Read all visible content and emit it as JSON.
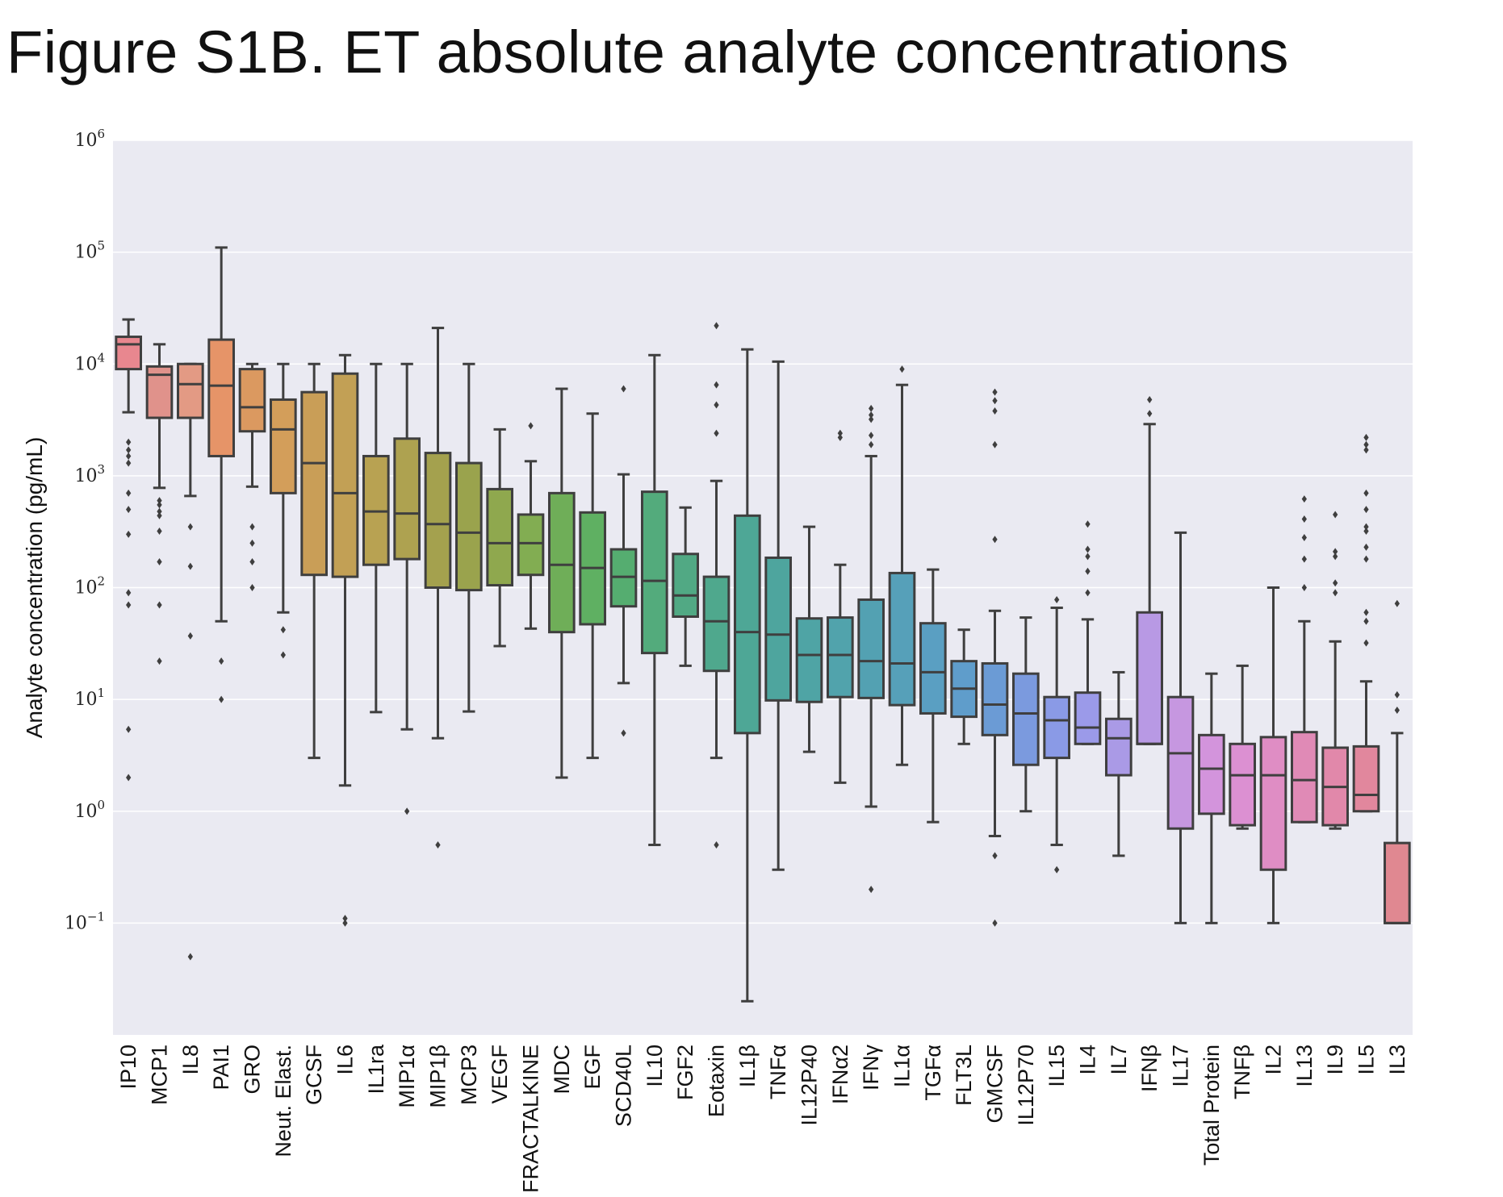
{
  "title": "Figure S1B. ET absolute analyte concentrations",
  "chart_data": {
    "type": "box",
    "title": "Figure S1B. ET absolute analyte concentrations",
    "ylabel": "Analyte concentration (pg/mL)",
    "xlabel": "",
    "yscale": "log",
    "ylim": [
      0.01,
      1000000
    ],
    "yticks": [
      {
        "value": 1000000,
        "base": "10",
        "exp": "6"
      },
      {
        "value": 100000,
        "base": "10",
        "exp": "5"
      },
      {
        "value": 10000,
        "base": "10",
        "exp": "4"
      },
      {
        "value": 1000,
        "base": "10",
        "exp": "3"
      },
      {
        "value": 100,
        "base": "10",
        "exp": "2"
      },
      {
        "value": 10,
        "base": "10",
        "exp": "1"
      },
      {
        "value": 1,
        "base": "10",
        "exp": "0"
      },
      {
        "value": 0.1,
        "base": "10",
        "exp": "−1"
      }
    ],
    "grid": true,
    "background": "#eaeaf2",
    "box_edge_color": "#3f3f3f",
    "categories": [
      {
        "label": "IP10",
        "color": "#e8878f",
        "whislo": 3700,
        "q1": 9000,
        "med": 15000,
        "q3": 17500,
        "whishi": 25000,
        "fliers": [
          2000,
          1700,
          1500,
          1300,
          700,
          500,
          300,
          90,
          70,
          5.4,
          2
        ]
      },
      {
        "label": "MCP1",
        "color": "#e0928b",
        "whislo": 780,
        "q1": 3300,
        "med": 8000,
        "q3": 9500,
        "whishi": 15000,
        "fliers": [
          600,
          550,
          480,
          440,
          320,
          170,
          70,
          22
        ]
      },
      {
        "label": "IL8",
        "color": "#e39a84",
        "whislo": 660,
        "q1": 3300,
        "med": 6600,
        "q3": 10000,
        "whishi": 10000,
        "fliers": [
          350,
          155,
          37,
          0.05
        ]
      },
      {
        "label": "PAI1",
        "color": "#e69468",
        "whislo": 50,
        "q1": 1500,
        "med": 6400,
        "q3": 16500,
        "whishi": 110000,
        "fliers": [
          22,
          10
        ]
      },
      {
        "label": "GRO",
        "color": "#db9960",
        "whislo": 800,
        "q1": 2500,
        "med": 4100,
        "q3": 9000,
        "whishi": 10000,
        "fliers": [
          350,
          250,
          170,
          100
        ]
      },
      {
        "label": "Neut. Elast.",
        "color": "#d39e5a",
        "whislo": 60,
        "q1": 700,
        "med": 2600,
        "q3": 4800,
        "whishi": 10000,
        "fliers": [
          42,
          25
        ]
      },
      {
        "label": "GCSF",
        "color": "#c99e57",
        "whislo": 3,
        "q1": 130,
        "med": 1300,
        "q3": 5600,
        "whishi": 10000,
        "fliers": []
      },
      {
        "label": "IL6",
        "color": "#c2a055",
        "whislo": 1.7,
        "q1": 125,
        "med": 700,
        "q3": 8200,
        "whishi": 12000,
        "fliers": [
          0.11,
          0.1
        ]
      },
      {
        "label": "IL1ra",
        "color": "#b8a252",
        "whislo": 7.7,
        "q1": 160,
        "med": 480,
        "q3": 1500,
        "whishi": 10000,
        "fliers": []
      },
      {
        "label": "MIP1α",
        "color": "#aea250",
        "whislo": 5.4,
        "q1": 180,
        "med": 460,
        "q3": 2150,
        "whishi": 10000,
        "fliers": [
          1
        ]
      },
      {
        "label": "MIP1β",
        "color": "#a4a14e",
        "whislo": 4.5,
        "q1": 100,
        "med": 370,
        "q3": 1600,
        "whishi": 21000,
        "fliers": [
          0.5
        ]
      },
      {
        "label": "MCP3",
        "color": "#9aa34d",
        "whislo": 7.8,
        "q1": 95,
        "med": 310,
        "q3": 1300,
        "whishi": 10000,
        "fliers": []
      },
      {
        "label": "VEGF",
        "color": "#8fa84e",
        "whislo": 30,
        "q1": 105,
        "med": 250,
        "q3": 760,
        "whishi": 2600,
        "fliers": []
      },
      {
        "label": "FRACTALKINE",
        "color": "#82ad52",
        "whislo": 43,
        "q1": 130,
        "med": 250,
        "q3": 450,
        "whishi": 1350,
        "fliers": [
          2800
        ]
      },
      {
        "label": "MDC",
        "color": "#6fae58",
        "whislo": 2,
        "q1": 40,
        "med": 160,
        "q3": 700,
        "whishi": 6000,
        "fliers": []
      },
      {
        "label": "EGF",
        "color": "#5fb062",
        "whislo": 3,
        "q1": 47,
        "med": 150,
        "q3": 470,
        "whishi": 3600,
        "fliers": []
      },
      {
        "label": "SCD40L",
        "color": "#55ad70",
        "whislo": 14,
        "q1": 68,
        "med": 125,
        "q3": 220,
        "whishi": 1030,
        "fliers": [
          6000,
          5
        ]
      },
      {
        "label": "IL10",
        "color": "#53ab7c",
        "whislo": 0.5,
        "q1": 26,
        "med": 115,
        "q3": 720,
        "whishi": 12000,
        "fliers": []
      },
      {
        "label": "FGF2",
        "color": "#51a984",
        "whislo": 20,
        "q1": 55,
        "med": 85,
        "q3": 200,
        "whishi": 520,
        "fliers": []
      },
      {
        "label": "Eotaxin",
        "color": "#4fa88d",
        "whislo": 3,
        "q1": 18,
        "med": 50,
        "q3": 125,
        "whishi": 900,
        "fliers": [
          22000,
          6500,
          4300,
          2400,
          0.5
        ]
      },
      {
        "label": "IL1β",
        "color": "#4ea796",
        "whislo": 0.02,
        "q1": 5,
        "med": 40,
        "q3": 440,
        "whishi": 13500,
        "fliers": []
      },
      {
        "label": "TNFα",
        "color": "#4ea59e",
        "whislo": 0.3,
        "q1": 9.8,
        "med": 38,
        "q3": 185,
        "whishi": 10500,
        "fliers": []
      },
      {
        "label": "IL12P40",
        "color": "#4fa4a5",
        "whislo": 3.4,
        "q1": 9.5,
        "med": 25,
        "q3": 53,
        "whishi": 350,
        "fliers": []
      },
      {
        "label": "IFNα2",
        "color": "#51a3ac",
        "whislo": 1.8,
        "q1": 10.5,
        "med": 25,
        "q3": 54,
        "whishi": 160,
        "fliers": [
          2400,
          2200
        ]
      },
      {
        "label": "IFNγ",
        "color": "#53a1b2",
        "whislo": 1.1,
        "q1": 10.3,
        "med": 22,
        "q3": 78,
        "whishi": 1500,
        "fliers": [
          4000,
          3500,
          3200,
          2300,
          1900,
          0.2
        ]
      },
      {
        "label": "IL1α",
        "color": "#56a0b9",
        "whislo": 2.6,
        "q1": 8.9,
        "med": 21,
        "q3": 135,
        "whishi": 6500,
        "fliers": [
          9000
        ]
      },
      {
        "label": "TGFα",
        "color": "#5a9fc2",
        "whislo": 0.8,
        "q1": 7.5,
        "med": 17.5,
        "q3": 48,
        "whishi": 145,
        "fliers": []
      },
      {
        "label": "FLT3L",
        "color": "#5f9dcb",
        "whislo": 4,
        "q1": 7,
        "med": 12.5,
        "q3": 22,
        "whishi": 42,
        "fliers": []
      },
      {
        "label": "GMCSF",
        "color": "#6b9bd5",
        "whislo": 0.6,
        "q1": 4.8,
        "med": 9,
        "q3": 21,
        "whishi": 62,
        "fliers": [
          5600,
          4700,
          3800,
          1900,
          270,
          0.4,
          0.1
        ]
      },
      {
        "label": "IL12P70",
        "color": "#7b9ade",
        "whislo": 1,
        "q1": 2.6,
        "med": 7.5,
        "q3": 17,
        "whishi": 54,
        "fliers": []
      },
      {
        "label": "IL15",
        "color": "#8a9ae6",
        "whislo": 0.5,
        "q1": 3,
        "med": 6.5,
        "q3": 10.5,
        "whishi": 66,
        "fliers": [
          78,
          0.3
        ]
      },
      {
        "label": "IL4",
        "color": "#9b9ae9",
        "whislo": 4,
        "q1": 4,
        "med": 5.6,
        "q3": 11.5,
        "whishi": 52,
        "fliers": [
          370,
          220,
          190,
          140,
          90
        ]
      },
      {
        "label": "IL7",
        "color": "#aa9ae6",
        "whislo": 0.4,
        "q1": 2.1,
        "med": 4.5,
        "q3": 6.7,
        "whishi": 17.5,
        "fliers": []
      },
      {
        "label": "IFNβ",
        "color": "#b899e4",
        "whislo": 4,
        "q1": 4,
        "med": 4,
        "q3": 60,
        "whishi": 2900,
        "fliers": [
          4800,
          3600
        ]
      },
      {
        "label": "IL17",
        "color": "#c697e0",
        "whislo": 0.1,
        "q1": 0.7,
        "med": 3.3,
        "q3": 10.5,
        "whishi": 310,
        "fliers": []
      },
      {
        "label": "Total Protein",
        "color": "#d394dc",
        "whislo": 0.1,
        "q1": 0.95,
        "med": 2.4,
        "q3": 4.8,
        "whishi": 17,
        "fliers": []
      },
      {
        "label": "TNFβ",
        "color": "#dc90d2",
        "whislo": 0.7,
        "q1": 0.75,
        "med": 2.1,
        "q3": 4,
        "whishi": 20,
        "fliers": []
      },
      {
        "label": "IL2",
        "color": "#df8dc4",
        "whislo": 0.1,
        "q1": 0.3,
        "med": 2.1,
        "q3": 4.6,
        "whishi": 100,
        "fliers": []
      },
      {
        "label": "IL13",
        "color": "#e08ab6",
        "whislo": 0.8,
        "q1": 0.8,
        "med": 1.9,
        "q3": 5.1,
        "whishi": 50,
        "fliers": [
          620,
          410,
          280,
          180,
          100
        ]
      },
      {
        "label": "IL9",
        "color": "#e188aa",
        "whislo": 0.7,
        "q1": 0.75,
        "med": 1.65,
        "q3": 3.7,
        "whishi": 33,
        "fliers": [
          450,
          210,
          190,
          110,
          90
        ]
      },
      {
        "label": "IL5",
        "color": "#e1879d",
        "whislo": 1,
        "q1": 1,
        "med": 1.4,
        "q3": 3.8,
        "whishi": 14.5,
        "fliers": [
          2200,
          1900,
          1700,
          700,
          500,
          350,
          320,
          230,
          180,
          60,
          50,
          32
        ]
      },
      {
        "label": "IL3",
        "color": "#e08891",
        "whislo": 0.1,
        "q1": 0.1,
        "med": 0.1,
        "q3": 0.52,
        "whishi": 5,
        "fliers": [
          72,
          11,
          8
        ]
      }
    ]
  }
}
